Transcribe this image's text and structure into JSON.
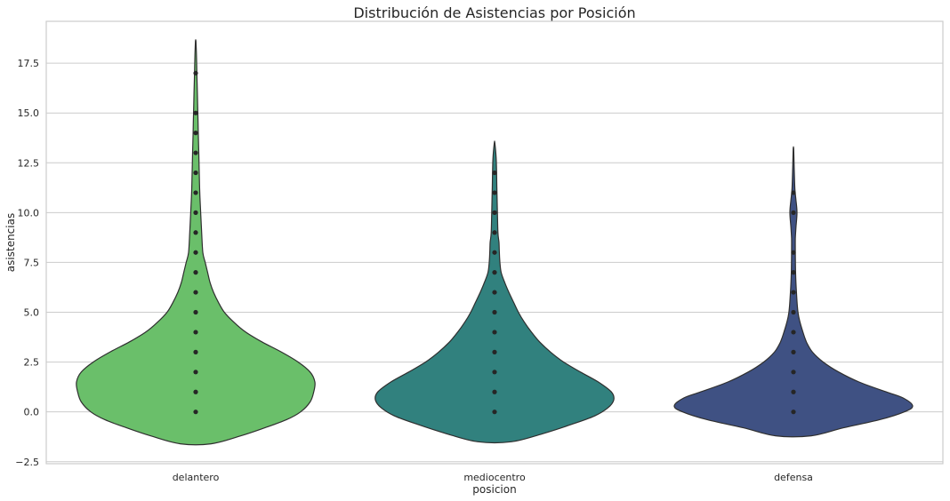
{
  "chart_data": {
    "type": "violin",
    "title": "Distribución de Asistencias por Posición",
    "xlabel": "posicion",
    "ylabel": "asistencias",
    "ylim": [
      -2.6,
      19.6
    ],
    "yticks": [
      -2.5,
      0.0,
      2.5,
      5.0,
      7.5,
      10.0,
      12.5,
      15.0,
      17.5
    ],
    "ytick_labels": [
      "−2.5",
      "0.0",
      "2.5",
      "5.0",
      "7.5",
      "10.0",
      "12.5",
      "15.0",
      "17.5"
    ],
    "grid": "horizontal",
    "categories": [
      "delantero",
      "mediocentro",
      "defensa"
    ],
    "series": [
      {
        "category": "delantero",
        "color": "#6abf6a",
        "points": [
          0,
          1,
          2,
          3,
          4,
          5,
          6,
          7,
          8,
          9,
          10,
          11,
          12,
          13,
          14,
          15,
          17
        ],
        "density": [
          [
            -1.6,
            0.13
          ],
          [
            -1.2,
            0.38
          ],
          [
            -0.8,
            0.58
          ],
          [
            -0.4,
            0.76
          ],
          [
            0.0,
            0.88
          ],
          [
            0.5,
            0.96
          ],
          [
            1.0,
            0.99
          ],
          [
            1.5,
            1.0
          ],
          [
            2.0,
            0.96
          ],
          [
            2.5,
            0.86
          ],
          [
            3.0,
            0.72
          ],
          [
            3.5,
            0.56
          ],
          [
            4.0,
            0.42
          ],
          [
            4.5,
            0.32
          ],
          [
            5.0,
            0.24
          ],
          [
            5.5,
            0.19
          ],
          [
            6.0,
            0.15
          ],
          [
            6.5,
            0.12
          ],
          [
            7.0,
            0.1
          ],
          [
            7.5,
            0.08
          ],
          [
            8.0,
            0.06
          ],
          [
            9.0,
            0.05
          ],
          [
            10.0,
            0.042
          ],
          [
            11.0,
            0.034
          ],
          [
            12.0,
            0.03
          ],
          [
            13.0,
            0.026
          ],
          [
            14.0,
            0.022
          ],
          [
            15.0,
            0.018
          ],
          [
            16.0,
            0.014
          ],
          [
            17.0,
            0.01
          ],
          [
            18.0,
            0.006
          ],
          [
            18.6,
            0.002
          ]
        ]
      },
      {
        "category": "mediocentro",
        "color": "#31817e",
        "points": [
          0,
          1,
          2,
          3,
          4,
          5,
          6,
          7,
          8,
          9,
          10,
          11,
          12
        ],
        "density": [
          [
            -1.5,
            0.14
          ],
          [
            -1.1,
            0.4
          ],
          [
            -0.6,
            0.66
          ],
          [
            -0.2,
            0.84
          ],
          [
            0.2,
            0.95
          ],
          [
            0.6,
            1.0
          ],
          [
            1.0,
            0.98
          ],
          [
            1.5,
            0.87
          ],
          [
            2.0,
            0.72
          ],
          [
            2.5,
            0.58
          ],
          [
            3.0,
            0.47
          ],
          [
            3.5,
            0.38
          ],
          [
            4.0,
            0.31
          ],
          [
            4.5,
            0.25
          ],
          [
            5.0,
            0.2
          ],
          [
            5.5,
            0.16
          ],
          [
            6.0,
            0.12
          ],
          [
            6.5,
            0.085
          ],
          [
            7.0,
            0.055
          ],
          [
            7.5,
            0.045
          ],
          [
            8.0,
            0.04
          ],
          [
            8.5,
            0.037
          ],
          [
            9.0,
            0.028
          ],
          [
            10.0,
            0.024
          ],
          [
            11.0,
            0.02
          ],
          [
            12.0,
            0.017
          ],
          [
            12.8,
            0.013
          ],
          [
            13.5,
            0.002
          ]
        ]
      },
      {
        "category": "defensa",
        "color": "#3f5183",
        "points": [
          0,
          1,
          2,
          3,
          4,
          5,
          6,
          7,
          8,
          10,
          11
        ],
        "density": [
          [
            -1.2,
            0.15
          ],
          [
            -0.8,
            0.42
          ],
          [
            -0.4,
            0.72
          ],
          [
            0.0,
            0.93
          ],
          [
            0.3,
            1.0
          ],
          [
            0.7,
            0.92
          ],
          [
            1.0,
            0.78
          ],
          [
            1.5,
            0.55
          ],
          [
            2.0,
            0.38
          ],
          [
            2.5,
            0.25
          ],
          [
            3.0,
            0.16
          ],
          [
            3.5,
            0.11
          ],
          [
            4.0,
            0.08
          ],
          [
            4.5,
            0.055
          ],
          [
            5.0,
            0.038
          ],
          [
            6.0,
            0.025
          ],
          [
            7.0,
            0.018
          ],
          [
            8.0,
            0.016
          ],
          [
            8.7,
            0.016
          ],
          [
            9.3,
            0.022
          ],
          [
            10.0,
            0.03
          ],
          [
            10.6,
            0.022
          ],
          [
            11.2,
            0.012
          ],
          [
            12.3,
            0.006
          ],
          [
            13.2,
            0.002
          ]
        ]
      }
    ]
  }
}
